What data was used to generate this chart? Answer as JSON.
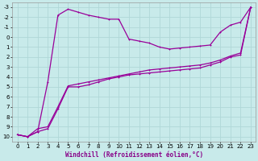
{
  "xlabel": "Windchill (Refroidissement éolien,°C)",
  "background_color": "#c8eaea",
  "grid_color": "#b0d8d8",
  "line_color": "#990099",
  "xlim": [
    -0.5,
    23.5
  ],
  "ylim": [
    -3.5,
    10.5
  ],
  "xticks": [
    0,
    1,
    2,
    3,
    4,
    5,
    6,
    7,
    8,
    9,
    10,
    11,
    12,
    13,
    14,
    15,
    16,
    17,
    18,
    19,
    20,
    21,
    22,
    23
  ],
  "yticks": [
    -3,
    -2,
    -1,
    0,
    1,
    2,
    3,
    4,
    5,
    6,
    7,
    8,
    9,
    10
  ],
  "curve1_x": [
    0,
    1,
    2,
    3,
    4,
    5,
    6,
    7,
    8,
    9,
    10,
    11,
    12,
    13,
    14,
    15,
    16,
    17,
    18,
    19,
    20,
    21,
    22,
    23
  ],
  "curve1_y": [
    9.8,
    10.0,
    9.5,
    9.2,
    7.2,
    5.0,
    5.0,
    4.8,
    4.5,
    4.2,
    4.0,
    3.8,
    3.7,
    3.6,
    3.5,
    3.4,
    3.3,
    3.2,
    3.1,
    2.8,
    2.5,
    2.0,
    1.8,
    -3.0
  ],
  "curve2_x": [
    0,
    1,
    2,
    3,
    4,
    5,
    6,
    7,
    8,
    9,
    10,
    11,
    12,
    13,
    14,
    15,
    16,
    17,
    18,
    19,
    20,
    21,
    22,
    23
  ],
  "curve2_y": [
    9.8,
    10.0,
    9.5,
    4.5,
    -2.2,
    -2.8,
    -2.5,
    -2.2,
    -2.0,
    -1.8,
    -1.8,
    0.2,
    0.4,
    0.6,
    1.0,
    1.2,
    1.1,
    1.0,
    0.9,
    0.8,
    -0.5,
    -1.2,
    -1.5,
    -3.0
  ],
  "curve3_x": [
    0,
    1,
    2,
    3,
    4,
    5,
    6,
    7,
    8,
    9,
    10,
    11,
    12,
    13,
    14,
    15,
    16,
    17,
    18,
    19,
    20,
    21,
    22,
    23
  ],
  "curve3_y": [
    9.8,
    10.0,
    9.2,
    9.0,
    7.0,
    4.9,
    4.7,
    4.5,
    4.3,
    4.1,
    3.9,
    3.7,
    3.5,
    3.3,
    3.2,
    3.1,
    3.0,
    2.9,
    2.8,
    2.6,
    2.3,
    1.9,
    1.6,
    -3.0
  ],
  "xlabel_fontsize": 5.5,
  "tick_fontsize": 5,
  "linewidth": 0.9,
  "markersize": 2.0
}
